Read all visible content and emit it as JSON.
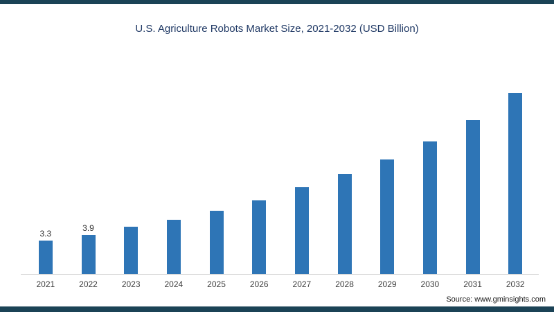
{
  "chart_data": {
    "type": "bar",
    "title": "U.S. Agriculture Robots Market Size, 2021-2032 (USD Billion)",
    "categories": [
      "2021",
      "2022",
      "2023",
      "2024",
      "2025",
      "2026",
      "2027",
      "2028",
      "2029",
      "2030",
      "2031",
      "2032"
    ],
    "values": [
      3.3,
      3.9,
      4.7,
      5.4,
      6.3,
      7.3,
      8.6,
      9.9,
      11.4,
      13.2,
      15.3,
      18.0
    ],
    "data_labels": [
      "3.3",
      "3.9",
      "",
      "",
      "",
      "",
      "",
      "",
      "",
      "",
      "",
      ""
    ],
    "xlabel": "",
    "ylabel": "",
    "ylim": [
      0,
      20
    ],
    "grid": false,
    "legend": "none",
    "bar_color": "#2e75b6"
  },
  "page": {
    "border_color": "#1b4356",
    "background": "#ffffff"
  },
  "source": {
    "label": "Source: www.gminsights.com"
  }
}
